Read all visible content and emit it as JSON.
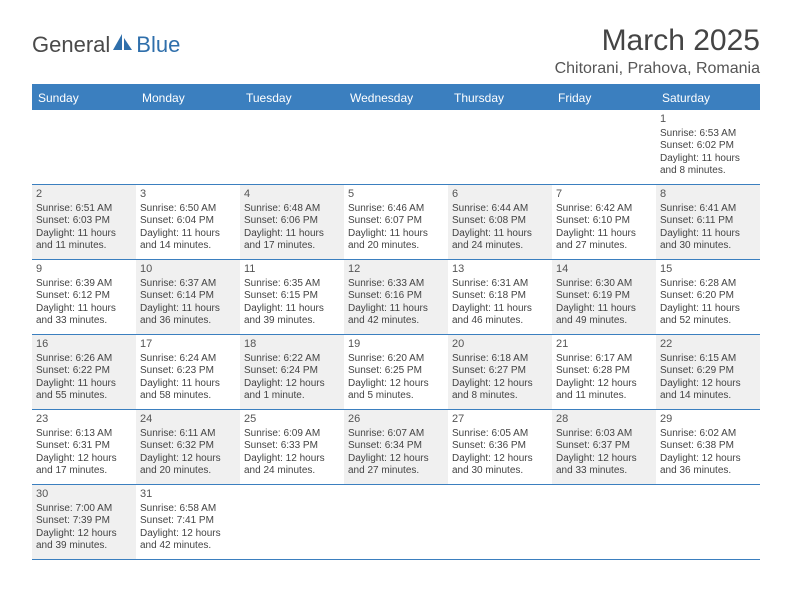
{
  "logo": {
    "text1": "General",
    "text2": "Blue",
    "color1": "#555555",
    "color2": "#2f6fab"
  },
  "title": "March 2025",
  "subtitle": "Chitorani, Prahova, Romania",
  "colors": {
    "header_bg": "#3b7fbf",
    "header_text": "#ffffff",
    "border": "#3b7fbf",
    "shaded": "#f0f0f0",
    "text": "#444444"
  },
  "day_headers": [
    "Sunday",
    "Monday",
    "Tuesday",
    "Wednesday",
    "Thursday",
    "Friday",
    "Saturday"
  ],
  "weeks": [
    [
      {
        "empty": true
      },
      {
        "empty": true
      },
      {
        "empty": true
      },
      {
        "empty": true
      },
      {
        "empty": true
      },
      {
        "empty": true
      },
      {
        "day": "1",
        "sunrise": "Sunrise: 6:53 AM",
        "sunset": "Sunset: 6:02 PM",
        "daylight1": "Daylight: 11 hours",
        "daylight2": "and 8 minutes.",
        "shaded": false
      }
    ],
    [
      {
        "day": "2",
        "sunrise": "Sunrise: 6:51 AM",
        "sunset": "Sunset: 6:03 PM",
        "daylight1": "Daylight: 11 hours",
        "daylight2": "and 11 minutes.",
        "shaded": true
      },
      {
        "day": "3",
        "sunrise": "Sunrise: 6:50 AM",
        "sunset": "Sunset: 6:04 PM",
        "daylight1": "Daylight: 11 hours",
        "daylight2": "and 14 minutes.",
        "shaded": false
      },
      {
        "day": "4",
        "sunrise": "Sunrise: 6:48 AM",
        "sunset": "Sunset: 6:06 PM",
        "daylight1": "Daylight: 11 hours",
        "daylight2": "and 17 minutes.",
        "shaded": true
      },
      {
        "day": "5",
        "sunrise": "Sunrise: 6:46 AM",
        "sunset": "Sunset: 6:07 PM",
        "daylight1": "Daylight: 11 hours",
        "daylight2": "and 20 minutes.",
        "shaded": false
      },
      {
        "day": "6",
        "sunrise": "Sunrise: 6:44 AM",
        "sunset": "Sunset: 6:08 PM",
        "daylight1": "Daylight: 11 hours",
        "daylight2": "and 24 minutes.",
        "shaded": true
      },
      {
        "day": "7",
        "sunrise": "Sunrise: 6:42 AM",
        "sunset": "Sunset: 6:10 PM",
        "daylight1": "Daylight: 11 hours",
        "daylight2": "and 27 minutes.",
        "shaded": false
      },
      {
        "day": "8",
        "sunrise": "Sunrise: 6:41 AM",
        "sunset": "Sunset: 6:11 PM",
        "daylight1": "Daylight: 11 hours",
        "daylight2": "and 30 minutes.",
        "shaded": true
      }
    ],
    [
      {
        "day": "9",
        "sunrise": "Sunrise: 6:39 AM",
        "sunset": "Sunset: 6:12 PM",
        "daylight1": "Daylight: 11 hours",
        "daylight2": "and 33 minutes.",
        "shaded": false
      },
      {
        "day": "10",
        "sunrise": "Sunrise: 6:37 AM",
        "sunset": "Sunset: 6:14 PM",
        "daylight1": "Daylight: 11 hours",
        "daylight2": "and 36 minutes.",
        "shaded": true
      },
      {
        "day": "11",
        "sunrise": "Sunrise: 6:35 AM",
        "sunset": "Sunset: 6:15 PM",
        "daylight1": "Daylight: 11 hours",
        "daylight2": "and 39 minutes.",
        "shaded": false
      },
      {
        "day": "12",
        "sunrise": "Sunrise: 6:33 AM",
        "sunset": "Sunset: 6:16 PM",
        "daylight1": "Daylight: 11 hours",
        "daylight2": "and 42 minutes.",
        "shaded": true
      },
      {
        "day": "13",
        "sunrise": "Sunrise: 6:31 AM",
        "sunset": "Sunset: 6:18 PM",
        "daylight1": "Daylight: 11 hours",
        "daylight2": "and 46 minutes.",
        "shaded": false
      },
      {
        "day": "14",
        "sunrise": "Sunrise: 6:30 AM",
        "sunset": "Sunset: 6:19 PM",
        "daylight1": "Daylight: 11 hours",
        "daylight2": "and 49 minutes.",
        "shaded": true
      },
      {
        "day": "15",
        "sunrise": "Sunrise: 6:28 AM",
        "sunset": "Sunset: 6:20 PM",
        "daylight1": "Daylight: 11 hours",
        "daylight2": "and 52 minutes.",
        "shaded": false
      }
    ],
    [
      {
        "day": "16",
        "sunrise": "Sunrise: 6:26 AM",
        "sunset": "Sunset: 6:22 PM",
        "daylight1": "Daylight: 11 hours",
        "daylight2": "and 55 minutes.",
        "shaded": true
      },
      {
        "day": "17",
        "sunrise": "Sunrise: 6:24 AM",
        "sunset": "Sunset: 6:23 PM",
        "daylight1": "Daylight: 11 hours",
        "daylight2": "and 58 minutes.",
        "shaded": false
      },
      {
        "day": "18",
        "sunrise": "Sunrise: 6:22 AM",
        "sunset": "Sunset: 6:24 PM",
        "daylight1": "Daylight: 12 hours",
        "daylight2": "and 1 minute.",
        "shaded": true
      },
      {
        "day": "19",
        "sunrise": "Sunrise: 6:20 AM",
        "sunset": "Sunset: 6:25 PM",
        "daylight1": "Daylight: 12 hours",
        "daylight2": "and 5 minutes.",
        "shaded": false
      },
      {
        "day": "20",
        "sunrise": "Sunrise: 6:18 AM",
        "sunset": "Sunset: 6:27 PM",
        "daylight1": "Daylight: 12 hours",
        "daylight2": "and 8 minutes.",
        "shaded": true
      },
      {
        "day": "21",
        "sunrise": "Sunrise: 6:17 AM",
        "sunset": "Sunset: 6:28 PM",
        "daylight1": "Daylight: 12 hours",
        "daylight2": "and 11 minutes.",
        "shaded": false
      },
      {
        "day": "22",
        "sunrise": "Sunrise: 6:15 AM",
        "sunset": "Sunset: 6:29 PM",
        "daylight1": "Daylight: 12 hours",
        "daylight2": "and 14 minutes.",
        "shaded": true
      }
    ],
    [
      {
        "day": "23",
        "sunrise": "Sunrise: 6:13 AM",
        "sunset": "Sunset: 6:31 PM",
        "daylight1": "Daylight: 12 hours",
        "daylight2": "and 17 minutes.",
        "shaded": false
      },
      {
        "day": "24",
        "sunrise": "Sunrise: 6:11 AM",
        "sunset": "Sunset: 6:32 PM",
        "daylight1": "Daylight: 12 hours",
        "daylight2": "and 20 minutes.",
        "shaded": true
      },
      {
        "day": "25",
        "sunrise": "Sunrise: 6:09 AM",
        "sunset": "Sunset: 6:33 PM",
        "daylight1": "Daylight: 12 hours",
        "daylight2": "and 24 minutes.",
        "shaded": false
      },
      {
        "day": "26",
        "sunrise": "Sunrise: 6:07 AM",
        "sunset": "Sunset: 6:34 PM",
        "daylight1": "Daylight: 12 hours",
        "daylight2": "and 27 minutes.",
        "shaded": true
      },
      {
        "day": "27",
        "sunrise": "Sunrise: 6:05 AM",
        "sunset": "Sunset: 6:36 PM",
        "daylight1": "Daylight: 12 hours",
        "daylight2": "and 30 minutes.",
        "shaded": false
      },
      {
        "day": "28",
        "sunrise": "Sunrise: 6:03 AM",
        "sunset": "Sunset: 6:37 PM",
        "daylight1": "Daylight: 12 hours",
        "daylight2": "and 33 minutes.",
        "shaded": true
      },
      {
        "day": "29",
        "sunrise": "Sunrise: 6:02 AM",
        "sunset": "Sunset: 6:38 PM",
        "daylight1": "Daylight: 12 hours",
        "daylight2": "and 36 minutes.",
        "shaded": false
      }
    ],
    [
      {
        "day": "30",
        "sunrise": "Sunrise: 7:00 AM",
        "sunset": "Sunset: 7:39 PM",
        "daylight1": "Daylight: 12 hours",
        "daylight2": "and 39 minutes.",
        "shaded": true
      },
      {
        "day": "31",
        "sunrise": "Sunrise: 6:58 AM",
        "sunset": "Sunset: 7:41 PM",
        "daylight1": "Daylight: 12 hours",
        "daylight2": "and 42 minutes.",
        "shaded": false
      },
      {
        "empty": true
      },
      {
        "empty": true
      },
      {
        "empty": true
      },
      {
        "empty": true
      },
      {
        "empty": true
      }
    ]
  ]
}
